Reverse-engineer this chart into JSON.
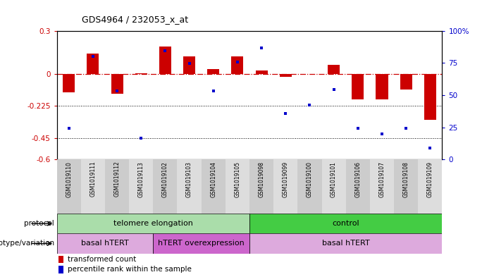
{
  "title": "GDS4964 / 232053_x_at",
  "samples": [
    "GSM1019110",
    "GSM1019111",
    "GSM1019112",
    "GSM1019113",
    "GSM1019102",
    "GSM1019103",
    "GSM1019104",
    "GSM1019105",
    "GSM1019098",
    "GSM1019099",
    "GSM1019100",
    "GSM1019101",
    "GSM1019106",
    "GSM1019107",
    "GSM1019108",
    "GSM1019109"
  ],
  "bar_values": [
    -0.13,
    0.14,
    -0.14,
    0.005,
    0.19,
    0.12,
    0.03,
    0.12,
    0.02,
    -0.02,
    0.0,
    0.06,
    -0.18,
    -0.18,
    -0.11,
    -0.32
  ],
  "dot_values": [
    -0.38,
    0.12,
    -0.12,
    -0.45,
    0.16,
    0.07,
    -0.12,
    0.08,
    0.18,
    -0.28,
    -0.22,
    -0.11,
    -0.38,
    -0.42,
    -0.38,
    -0.52
  ],
  "ylim_left": [
    -0.6,
    0.3
  ],
  "ylim_right": [
    0,
    100
  ],
  "yticks_left": [
    0.3,
    0.0,
    -0.225,
    -0.45,
    -0.6
  ],
  "yticks_right": [
    100,
    75,
    50,
    25,
    0
  ],
  "dotline1": -0.225,
  "dotline2": -0.45,
  "bar_color": "#cc0000",
  "dot_color": "#0000cc",
  "bar_width": 0.5,
  "protocol_groups": [
    {
      "label": "telomere elongation",
      "start": 0,
      "end": 8,
      "color": "#aaddaa"
    },
    {
      "label": "control",
      "start": 8,
      "end": 16,
      "color": "#44cc44"
    }
  ],
  "genotype_groups": [
    {
      "label": "basal hTERT",
      "start": 0,
      "end": 4,
      "color": "#ddaadd"
    },
    {
      "label": "hTERT overexpression",
      "start": 4,
      "end": 8,
      "color": "#cc66cc"
    },
    {
      "label": "basal hTERT",
      "start": 8,
      "end": 16,
      "color": "#ddaadd"
    }
  ],
  "protocol_label": "protocol",
  "genotype_label": "genotype/variation",
  "legend_bar": "transformed count",
  "legend_dot": "percentile rank within the sample",
  "bg_color": "#ffffff",
  "tick_label_color_left": "#cc0000",
  "tick_label_color_right": "#0000cc",
  "label_bg_even": "#cccccc",
  "label_bg_odd": "#dddddd"
}
